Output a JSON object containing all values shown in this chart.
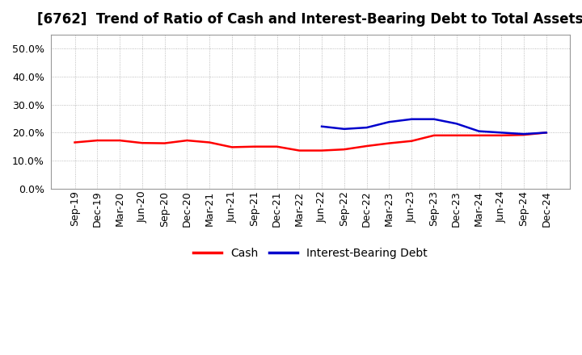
{
  "title": "[6762]  Trend of Ratio of Cash and Interest-Bearing Debt to Total Assets",
  "x_labels": [
    "Sep-19",
    "Dec-19",
    "Mar-20",
    "Jun-20",
    "Sep-20",
    "Dec-20",
    "Mar-21",
    "Jun-21",
    "Sep-21",
    "Dec-21",
    "Mar-22",
    "Jun-22",
    "Sep-22",
    "Dec-22",
    "Mar-23",
    "Jun-23",
    "Sep-23",
    "Dec-23",
    "Mar-24",
    "Jun-24",
    "Sep-24",
    "Dec-24"
  ],
  "cash": [
    0.165,
    0.172,
    0.172,
    0.163,
    0.162,
    0.172,
    0.165,
    0.148,
    0.15,
    0.15,
    0.136,
    0.136,
    0.14,
    0.152,
    0.162,
    0.17,
    0.19,
    0.19,
    0.19,
    0.19,
    0.192,
    0.2
  ],
  "interest_bearing_debt": [
    null,
    null,
    null,
    null,
    null,
    null,
    null,
    null,
    null,
    null,
    null,
    0.222,
    0.213,
    0.218,
    0.238,
    0.248,
    0.248,
    0.232,
    0.205,
    0.2,
    0.195,
    0.2
  ],
  "cash_color": "#FF0000",
  "debt_color": "#0000CC",
  "ylim": [
    0.0,
    0.55
  ],
  "yticks": [
    0.0,
    0.1,
    0.2,
    0.3,
    0.4,
    0.5
  ],
  "background_color": "#FFFFFF",
  "grid_color": "#AAAAAA",
  "legend_cash": "Cash",
  "legend_debt": "Interest-Bearing Debt",
  "title_fontsize": 12,
  "tick_fontsize": 9,
  "linewidth": 1.8
}
